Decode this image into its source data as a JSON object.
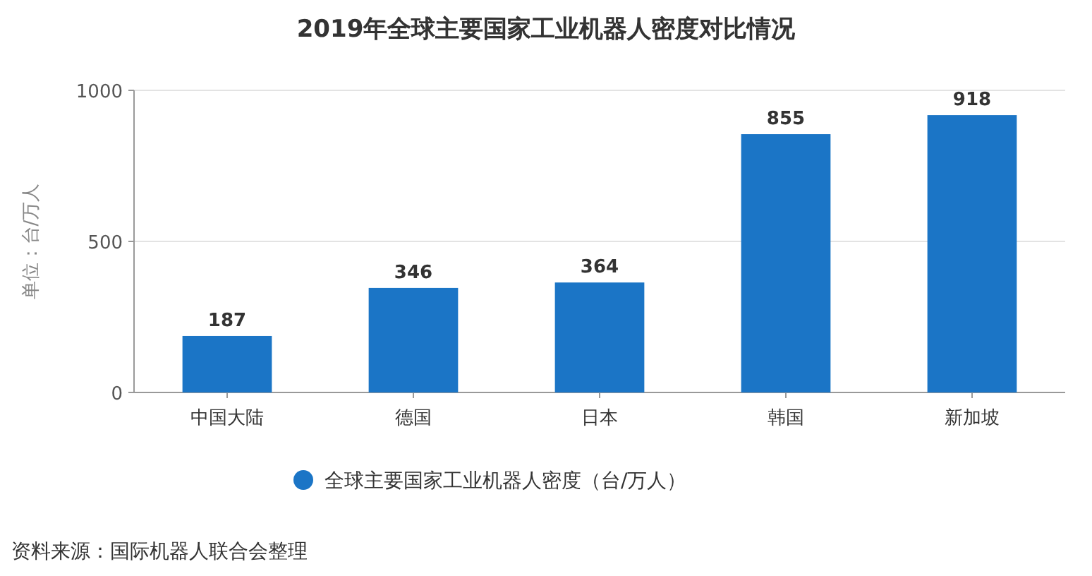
{
  "chart_data": {
    "type": "bar",
    "title": "2019年全球主要国家工业机器人密度对比情况",
    "ylabel": "单位：台/万人",
    "categories": [
      "中国大陆",
      "德国",
      "日本",
      "韩国",
      "新加坡"
    ],
    "series": [
      {
        "name": "全球主要国家工业机器人密度（台/万人）",
        "color": "#1b75c6",
        "values": [
          187,
          346,
          364,
          855,
          918
        ]
      }
    ],
    "ylim": [
      0,
      1000
    ],
    "yticks": [
      0,
      500,
      1000
    ],
    "grid": "y",
    "data_labels": true,
    "legend": "bottom",
    "annotations": [
      "资料来源：国际机器人联合会整理"
    ]
  }
}
